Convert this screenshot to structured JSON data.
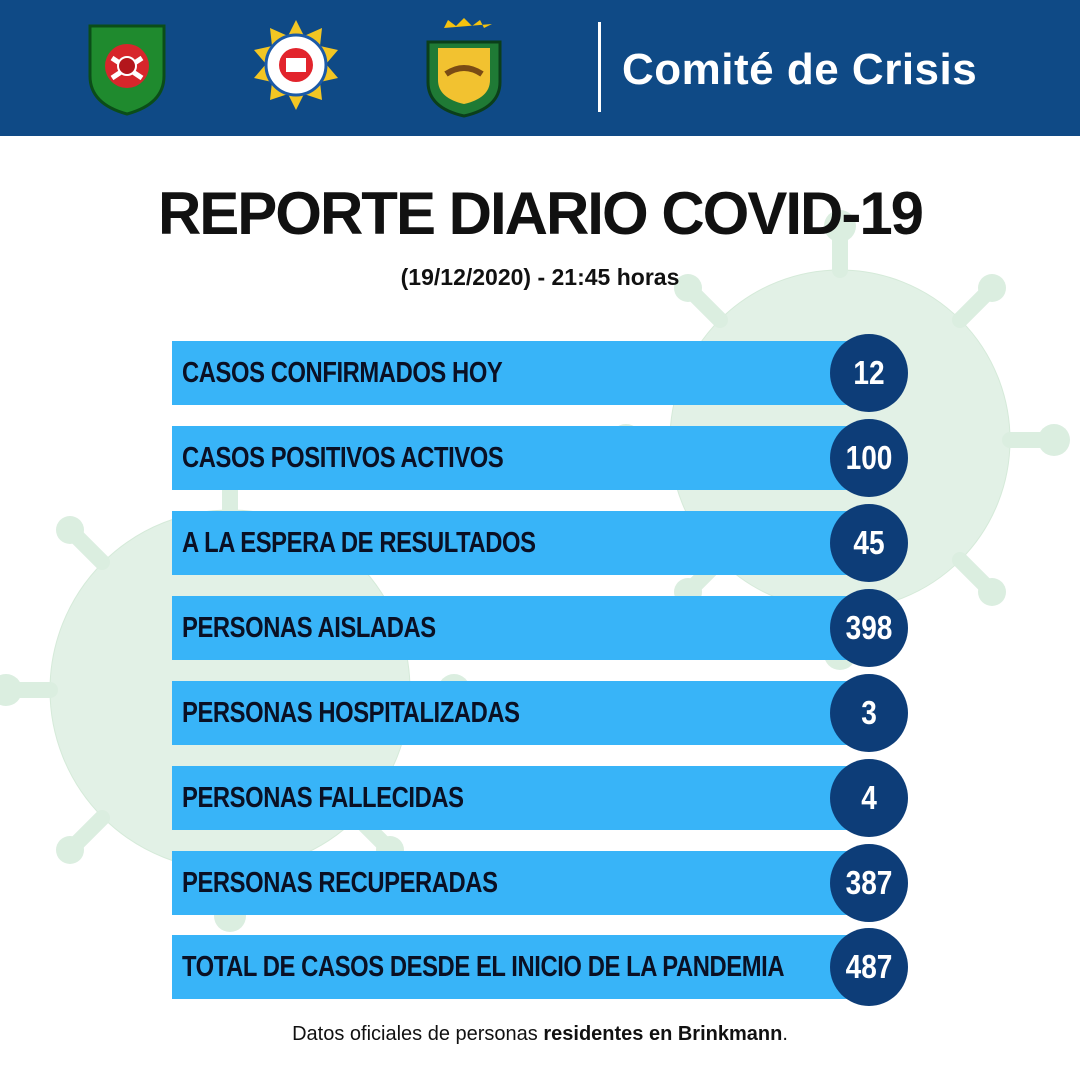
{
  "header": {
    "title": "Comité de Crisis",
    "logos": [
      {
        "icon": "bomberos-voluntarios-shield-icon"
      },
      {
        "icon": "policia-provincia-badge-icon"
      },
      {
        "icon": "municipal-coat-of-arms-icon"
      }
    ],
    "colors": {
      "bar": "#0f4a86",
      "text": "#ffffff"
    }
  },
  "report": {
    "title": "REPORTE DIARIO COVID-19",
    "subtitle": "(19/12/2020) - 21:45 horas"
  },
  "stats": [
    {
      "label": "CASOS CONFIRMADOS HOY",
      "value": "12"
    },
    {
      "label": "CASOS POSITIVOS ACTIVOS",
      "value": "100"
    },
    {
      "label": "A LA ESPERA DE RESULTADOS",
      "value": "45"
    },
    {
      "label": "PERSONAS AISLADAS",
      "value": "398"
    },
    {
      "label": "PERSONAS HOSPITALIZADAS",
      "value": "3"
    },
    {
      "label": "PERSONAS FALLECIDAS",
      "value": "4"
    },
    {
      "label": "PERSONAS RECUPERADAS",
      "value": "387"
    },
    {
      "label": "TOTAL DE CASOS DESDE EL INICIO DE LA PANDEMIA",
      "value": "487"
    }
  ],
  "footer": {
    "prefix": "Datos oficiales de personas ",
    "bold": "residentes en Brinkmann",
    "suffix": "."
  },
  "colors": {
    "bar": "#38b4f8",
    "circle": "#0d3d78",
    "virus": "#dbeee0"
  }
}
